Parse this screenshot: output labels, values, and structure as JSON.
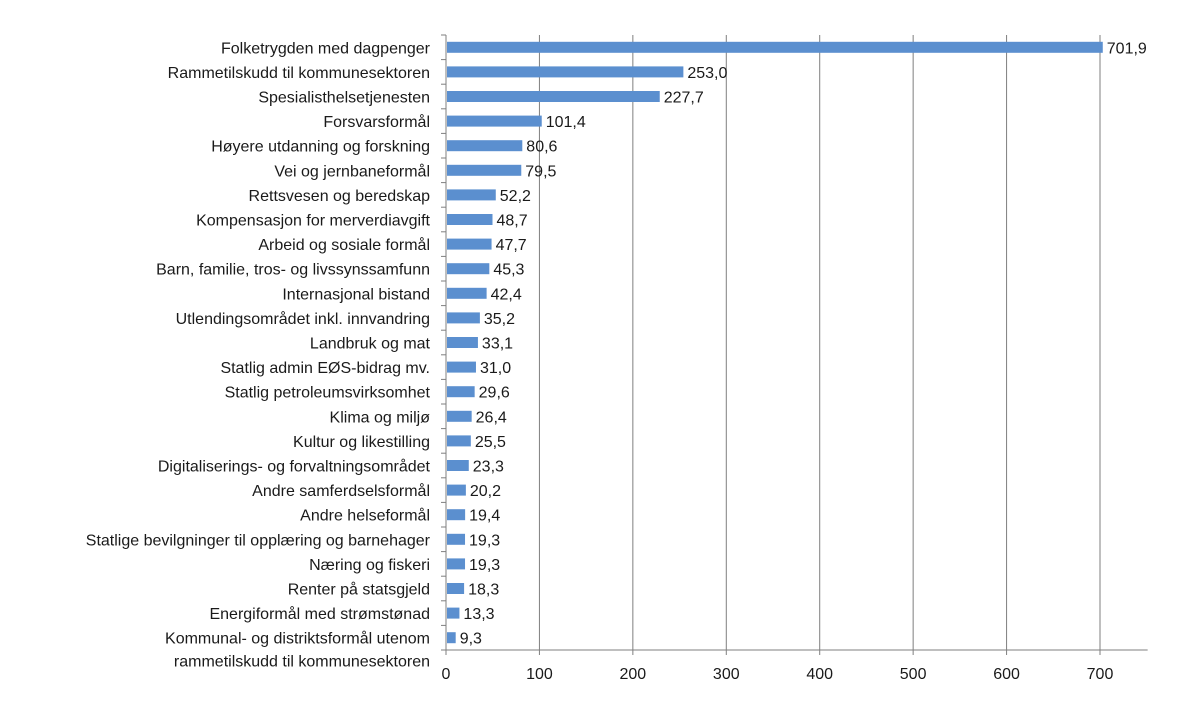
{
  "chart_data": {
    "type": "bar",
    "orientation": "horizontal",
    "title": "",
    "xlabel": "",
    "ylabel": "",
    "xlim": [
      0,
      751
    ],
    "xticks": [
      0,
      100,
      200,
      300,
      400,
      500,
      600,
      700
    ],
    "xtick_labels": [
      "0",
      "100",
      "200",
      "300",
      "400",
      "500",
      "600",
      "700"
    ],
    "grid": "vertical",
    "bar_color": "#5b8fcf",
    "categories": [
      "Folketrygden med dagpenger",
      "Rammetilskudd til kommunesektoren",
      "Spesialisthelsetjenesten",
      "Forsvarsformål",
      "Høyere utdanning og forskning",
      "Vei og jernbaneformål",
      "Rettsvesen og beredskap",
      "Kompensasjon for merverdiavgift",
      "Arbeid og sosiale formål",
      "Barn, familie, tros- og livssynssamfunn",
      "Internasjonal bistand",
      "Utlendingsområdet inkl. innvandring",
      "Landbruk og mat",
      "Statlig admin EØS-bidrag mv.",
      "Statlig petroleumsvirksomhet",
      "Klima og miljø",
      "Kultur og likestilling",
      "Digitaliserings- og forvaltningsområdet",
      "Andre samferdselsformål",
      "Andre helseformål",
      "Statlige bevilgninger til opplæring og barnehager",
      "Næring og fiskeri",
      "Renter på statsgjeld",
      "Energiformål med strømstønad",
      "Kommunal- og distriktsformål utenom\nrammetilskudd til kommunesektoren"
    ],
    "values": [
      701.9,
      253.0,
      227.7,
      101.4,
      80.6,
      79.5,
      52.2,
      48.7,
      47.7,
      45.3,
      42.4,
      35.2,
      33.1,
      31.0,
      29.6,
      26.4,
      25.5,
      23.3,
      20.2,
      19.4,
      19.3,
      19.3,
      18.3,
      13.3,
      9.3
    ],
    "data_labels": [
      "701,9",
      "253,0",
      "227,7",
      "101,4",
      "80,6",
      "79,5",
      "52,2",
      "48,7",
      "47,7",
      "45,3",
      "42,4",
      "35,2",
      "33,1",
      "31,0",
      "29,6",
      "26,4",
      "25,5",
      "23,3",
      "20,2",
      "19,4",
      "19,3",
      "19,3",
      "18,3",
      "13,3",
      "9,3"
    ]
  }
}
